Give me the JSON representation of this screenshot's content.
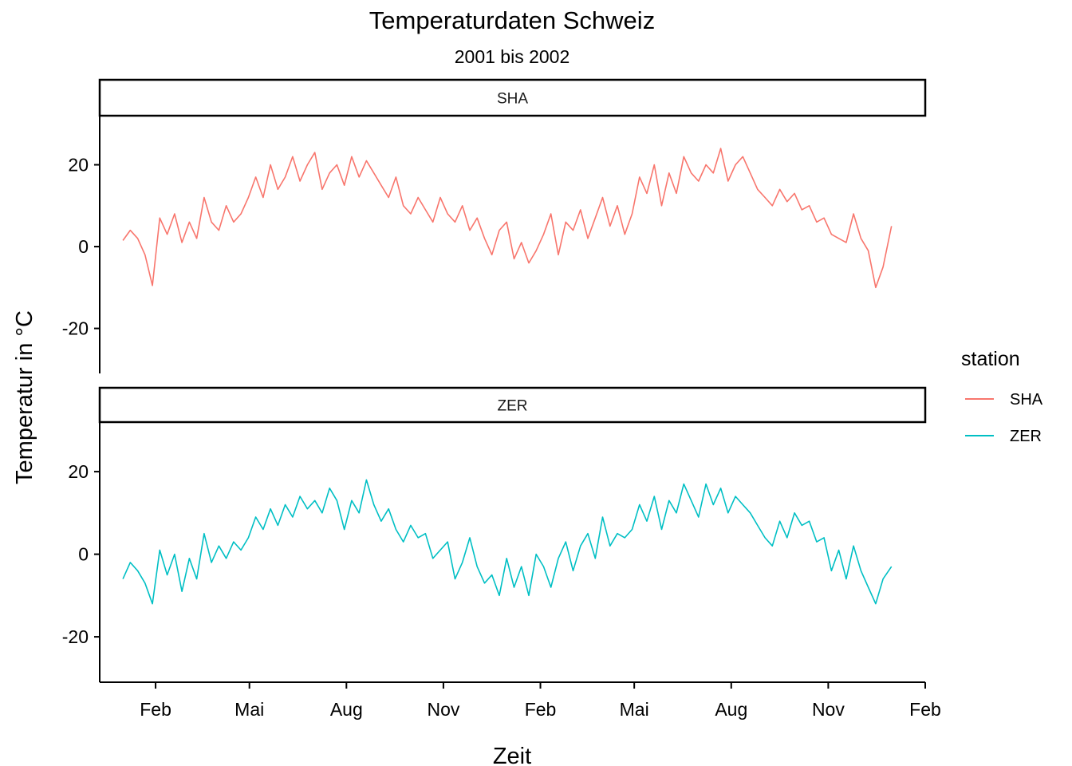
{
  "chart_data": {
    "type": "line",
    "title": "Temperaturdaten Schweiz",
    "subtitle": "2001 bis 2002",
    "xlabel": "Zeit",
    "ylabel": "Temperatur in °C",
    "x_tick_labels": [
      "Feb",
      "Mai",
      "Aug",
      "Nov",
      "Feb",
      "Mai",
      "Aug",
      "Nov",
      "Feb"
    ],
    "x_tick_dates": [
      "2001-02-01",
      "2001-05-01",
      "2001-08-01",
      "2001-11-01",
      "2002-02-01",
      "2002-05-01",
      "2002-08-01",
      "2002-11-01",
      "2003-02-01"
    ],
    "xlim": [
      "2000-12-10",
      "2003-02-01"
    ],
    "ylim": [
      -31,
      32
    ],
    "y_ticks": [
      20,
      0,
      -20
    ],
    "y_tick_labels": [
      "20",
      "0",
      "-20"
    ],
    "legend": {
      "title": "station",
      "placement": "right"
    },
    "colors": {
      "SHA": "#F8766D",
      "ZER": "#00BFC4"
    },
    "series": [
      {
        "name": "SHA",
        "facet": "SHA",
        "x": [
          "2001-01-01",
          "2001-01-08",
          "2001-01-15",
          "2001-01-22",
          "2001-01-29",
          "2001-02-05",
          "2001-02-12",
          "2001-02-19",
          "2001-02-26",
          "2001-03-05",
          "2001-03-12",
          "2001-03-19",
          "2001-03-26",
          "2001-04-02",
          "2001-04-09",
          "2001-04-16",
          "2001-04-23",
          "2001-04-30",
          "2001-05-07",
          "2001-05-14",
          "2001-05-21",
          "2001-05-28",
          "2001-06-04",
          "2001-06-11",
          "2001-06-18",
          "2001-06-25",
          "2001-07-02",
          "2001-07-09",
          "2001-07-16",
          "2001-07-23",
          "2001-07-30",
          "2001-08-06",
          "2001-08-13",
          "2001-08-20",
          "2001-08-27",
          "2001-09-03",
          "2001-09-10",
          "2001-09-17",
          "2001-09-24",
          "2001-10-01",
          "2001-10-08",
          "2001-10-15",
          "2001-10-22",
          "2001-10-29",
          "2001-11-05",
          "2001-11-12",
          "2001-11-19",
          "2001-11-26",
          "2001-12-03",
          "2001-12-10",
          "2001-12-17",
          "2001-12-24",
          "2001-12-31",
          "2002-01-07",
          "2002-01-14",
          "2002-01-21",
          "2002-01-28",
          "2002-02-04",
          "2002-02-11",
          "2002-02-18",
          "2002-02-25",
          "2002-03-04",
          "2002-03-11",
          "2002-03-18",
          "2002-03-25",
          "2002-04-01",
          "2002-04-08",
          "2002-04-15",
          "2002-04-22",
          "2002-04-29",
          "2002-05-06",
          "2002-05-13",
          "2002-05-20",
          "2002-05-27",
          "2002-06-03",
          "2002-06-10",
          "2002-06-17",
          "2002-06-24",
          "2002-07-01",
          "2002-07-08",
          "2002-07-15",
          "2002-07-22",
          "2002-07-29",
          "2002-08-05",
          "2002-08-12",
          "2002-08-19",
          "2002-08-26",
          "2002-09-02",
          "2002-09-09",
          "2002-09-16",
          "2002-09-23",
          "2002-09-30",
          "2002-10-07",
          "2002-10-14",
          "2002-10-21",
          "2002-10-28",
          "2002-11-04",
          "2002-11-11",
          "2002-11-18",
          "2002-11-25",
          "2002-12-02",
          "2002-12-09",
          "2002-12-16",
          "2002-12-23",
          "2002-12-31"
        ],
        "y": [
          1.5,
          4,
          2,
          -2,
          -9.5,
          7,
          3,
          8,
          1,
          6,
          2,
          12,
          6,
          4,
          10,
          6,
          8,
          12,
          17,
          12,
          20,
          14,
          17,
          22,
          16,
          20,
          23,
          14,
          18,
          20,
          15,
          22,
          17,
          21,
          18,
          15,
          12,
          17,
          10,
          8,
          12,
          9,
          6,
          12,
          8,
          6,
          10,
          4,
          7,
          2,
          -2,
          4,
          6,
          -3,
          1,
          -4,
          -1,
          3,
          8,
          -2,
          6,
          4,
          9,
          2,
          7,
          12,
          5,
          10,
          3,
          8,
          17,
          13,
          20,
          10,
          18,
          13,
          22,
          18,
          16,
          20,
          18,
          24,
          16,
          20,
          22,
          18,
          14,
          12,
          10,
          14,
          11,
          13,
          9,
          10,
          6,
          7,
          3,
          2,
          1,
          8,
          2,
          -1,
          -10,
          -5,
          5
        ]
      },
      {
        "name": "ZER",
        "facet": "ZER",
        "x": [
          "2001-01-01",
          "2001-01-08",
          "2001-01-15",
          "2001-01-22",
          "2001-01-29",
          "2001-02-05",
          "2001-02-12",
          "2001-02-19",
          "2001-02-26",
          "2001-03-05",
          "2001-03-12",
          "2001-03-19",
          "2001-03-26",
          "2001-04-02",
          "2001-04-09",
          "2001-04-16",
          "2001-04-23",
          "2001-04-30",
          "2001-05-07",
          "2001-05-14",
          "2001-05-21",
          "2001-05-28",
          "2001-06-04",
          "2001-06-11",
          "2001-06-18",
          "2001-06-25",
          "2001-07-02",
          "2001-07-09",
          "2001-07-16",
          "2001-07-23",
          "2001-07-30",
          "2001-08-06",
          "2001-08-13",
          "2001-08-20",
          "2001-08-27",
          "2001-09-03",
          "2001-09-10",
          "2001-09-17",
          "2001-09-24",
          "2001-10-01",
          "2001-10-08",
          "2001-10-15",
          "2001-10-22",
          "2001-10-29",
          "2001-11-05",
          "2001-11-12",
          "2001-11-19",
          "2001-11-26",
          "2001-12-03",
          "2001-12-10",
          "2001-12-17",
          "2001-12-24",
          "2001-12-31",
          "2002-01-07",
          "2002-01-14",
          "2002-01-21",
          "2002-01-28",
          "2002-02-04",
          "2002-02-11",
          "2002-02-18",
          "2002-02-25",
          "2002-03-04",
          "2002-03-11",
          "2002-03-18",
          "2002-03-25",
          "2002-04-01",
          "2002-04-08",
          "2002-04-15",
          "2002-04-22",
          "2002-04-29",
          "2002-05-06",
          "2002-05-13",
          "2002-05-20",
          "2002-05-27",
          "2002-06-03",
          "2002-06-10",
          "2002-06-17",
          "2002-06-24",
          "2002-07-01",
          "2002-07-08",
          "2002-07-15",
          "2002-07-22",
          "2002-07-29",
          "2002-08-05",
          "2002-08-12",
          "2002-08-19",
          "2002-08-26",
          "2002-09-02",
          "2002-09-09",
          "2002-09-16",
          "2002-09-23",
          "2002-09-30",
          "2002-10-07",
          "2002-10-14",
          "2002-10-21",
          "2002-10-28",
          "2002-11-04",
          "2002-11-11",
          "2002-11-18",
          "2002-11-25",
          "2002-12-02",
          "2002-12-09",
          "2002-12-16",
          "2002-12-23",
          "2002-12-31"
        ],
        "y": [
          -6,
          -2,
          -4,
          -7,
          -12,
          1,
          -5,
          0,
          -9,
          -1,
          -6,
          5,
          -2,
          2,
          -1,
          3,
          1,
          4,
          9,
          6,
          11,
          7,
          12,
          9,
          14,
          11,
          13,
          10,
          16,
          13,
          6,
          13,
          10,
          18,
          12,
          8,
          11,
          6,
          3,
          7,
          4,
          5,
          -1,
          1,
          3,
          -6,
          -2,
          4,
          -3,
          -7,
          -5,
          -10,
          -1,
          -8,
          -3,
          -10,
          0,
          -3,
          -8,
          -1,
          3,
          -4,
          2,
          5,
          -1,
          9,
          2,
          5,
          4,
          6,
          12,
          8,
          14,
          6,
          13,
          10,
          17,
          13,
          9,
          17,
          12,
          16,
          10,
          14,
          12,
          10,
          7,
          4,
          2,
          8,
          4,
          10,
          7,
          8,
          3,
          4,
          -4,
          1,
          -6,
          2,
          -4,
          -8,
          -12,
          -6,
          -3
        ]
      }
    ]
  }
}
